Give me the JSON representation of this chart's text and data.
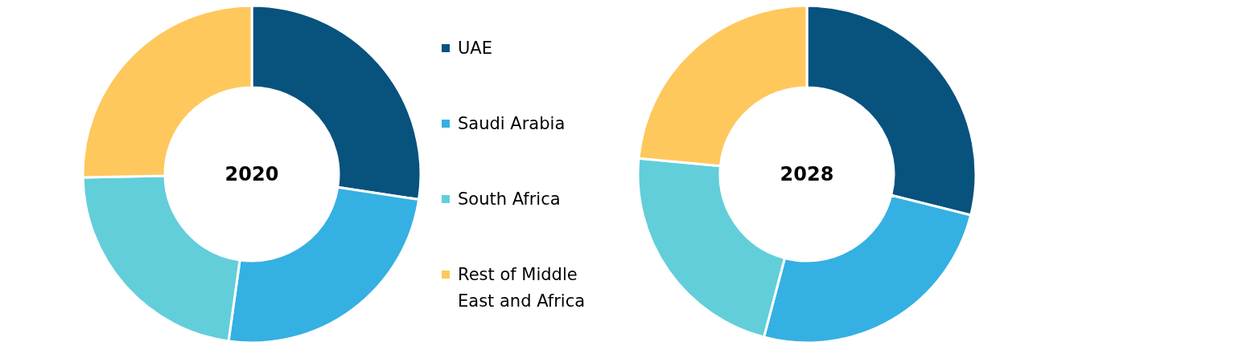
{
  "chart_data": [
    {
      "type": "donut",
      "title": "2020",
      "categories": [
        "UAE",
        "Saudi Arabia",
        "South Africa",
        "Rest of Middle East and Africa"
      ],
      "values": [
        27.4,
        24.8,
        22.5,
        25.3
      ],
      "colors": [
        "#08527e",
        "#35b0e2",
        "#62ceda",
        "#fec85d"
      ],
      "legend": "right"
    },
    {
      "type": "donut",
      "title": "2028",
      "categories": [
        null,
        null,
        null,
        null
      ],
      "values": [
        28.9,
        25.2,
        22.4,
        23.5
      ],
      "colors": [
        "#08527e",
        "#35b0e2",
        "#62ceda",
        "#fec85d"
      ],
      "legend": false
    }
  ]
}
